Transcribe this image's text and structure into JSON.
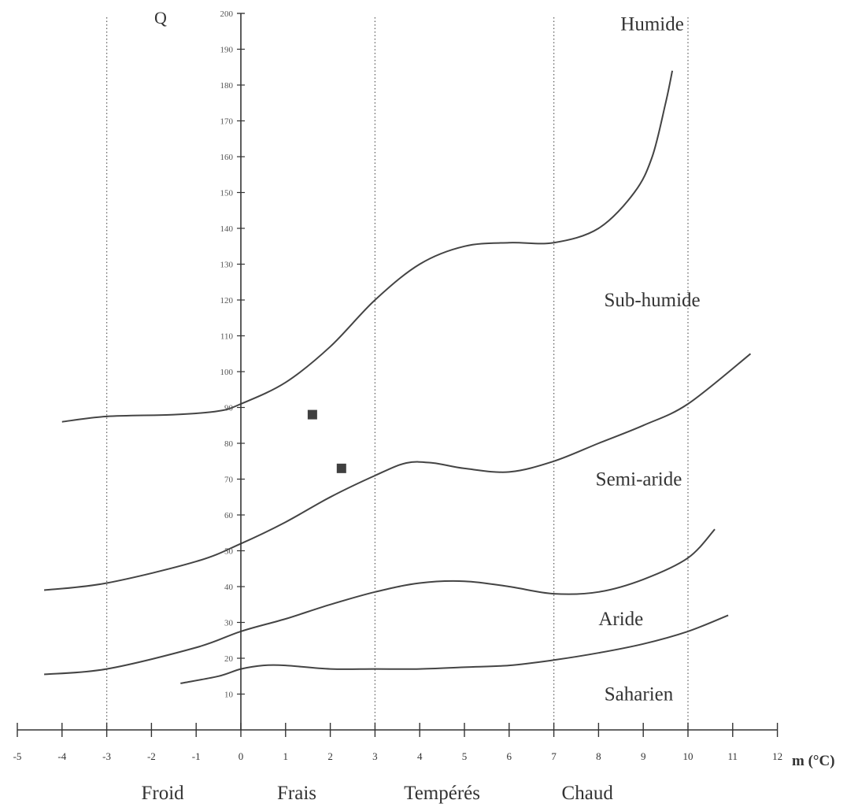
{
  "chart_data": {
    "type": "line",
    "title": "",
    "ylabel": "Q",
    "xlabel": "m (°C)",
    "xlim": [
      -5,
      12
    ],
    "ylim": [
      0,
      200
    ],
    "x_ticks": [
      -5,
      -4,
      -3,
      -2,
      -1,
      0,
      1,
      2,
      3,
      4,
      5,
      6,
      7,
      8,
      9,
      10,
      11,
      12
    ],
    "y_ticks": [
      10,
      20,
      30,
      40,
      50,
      60,
      70,
      80,
      90,
      100,
      110,
      120,
      130,
      140,
      150,
      160,
      170,
      180,
      190,
      200
    ],
    "grid": false,
    "vertical_dividers": [
      -3,
      3,
      7,
      10
    ],
    "series": [
      {
        "x": [
          -4.0,
          -3.0,
          -1.5,
          -0.5,
          0.0,
          1.0,
          2.0,
          3.0,
          4.0,
          5.0,
          6.0,
          7.0,
          8.0,
          8.8,
          9.2,
          9.5,
          9.65
        ],
        "y": [
          86,
          87.5,
          88,
          89,
          91,
          97,
          107,
          120,
          130,
          135,
          136,
          136,
          140,
          150,
          160,
          175,
          184
        ]
      },
      {
        "x": [
          -4.4,
          -3.0,
          -1.0,
          0.0,
          1.0,
          2.0,
          3.0,
          3.7,
          4.3,
          5.0,
          6.0,
          7.0,
          8.0,
          9.0,
          10.0,
          11.4
        ],
        "y": [
          39,
          41,
          47,
          52,
          58,
          65,
          71,
          74.5,
          74.5,
          73,
          72,
          75,
          80,
          85,
          91,
          105
        ]
      },
      {
        "x": [
          -4.4,
          -3.0,
          -1.0,
          0.0,
          1.0,
          2.0,
          3.0,
          4.0,
          5.0,
          6.0,
          7.0,
          8.0,
          9.0,
          10.0,
          10.6
        ],
        "y": [
          15.5,
          17,
          23,
          27.5,
          31,
          35,
          38.5,
          41,
          41.5,
          40,
          38,
          38.5,
          42,
          48,
          56
        ]
      },
      {
        "x": [
          -1.35,
          -0.5,
          0.0,
          0.5,
          1.0,
          2.0,
          3.0,
          4.0,
          5.0,
          6.0,
          7.0,
          8.0,
          9.0,
          10.0,
          10.9
        ],
        "y": [
          13,
          15,
          17,
          18,
          18,
          17,
          17,
          17,
          17.5,
          18,
          19.5,
          21.5,
          24,
          27.5,
          32
        ]
      }
    ],
    "points": [
      {
        "x": 1.6,
        "y": 88
      },
      {
        "x": 2.25,
        "y": 73
      }
    ],
    "climate_zones": [
      {
        "label": "Humide",
        "x": 9.2,
        "y": 197
      },
      {
        "label": "Sub-humide",
        "x": 9.2,
        "y": 120
      },
      {
        "label": "Semi-aride",
        "x": 8.9,
        "y": 70
      },
      {
        "label": "Aride",
        "x": 8.5,
        "y": 31
      },
      {
        "label": "Saharien",
        "x": 8.9,
        "y": 10
      }
    ],
    "temperature_zones": [
      {
        "label": "Froid",
        "x": -1.75
      },
      {
        "label": "Frais",
        "x": 1.25
      },
      {
        "label": "Tempérés",
        "x": 4.5
      },
      {
        "label": "Chaud",
        "x": 7.75
      }
    ]
  }
}
